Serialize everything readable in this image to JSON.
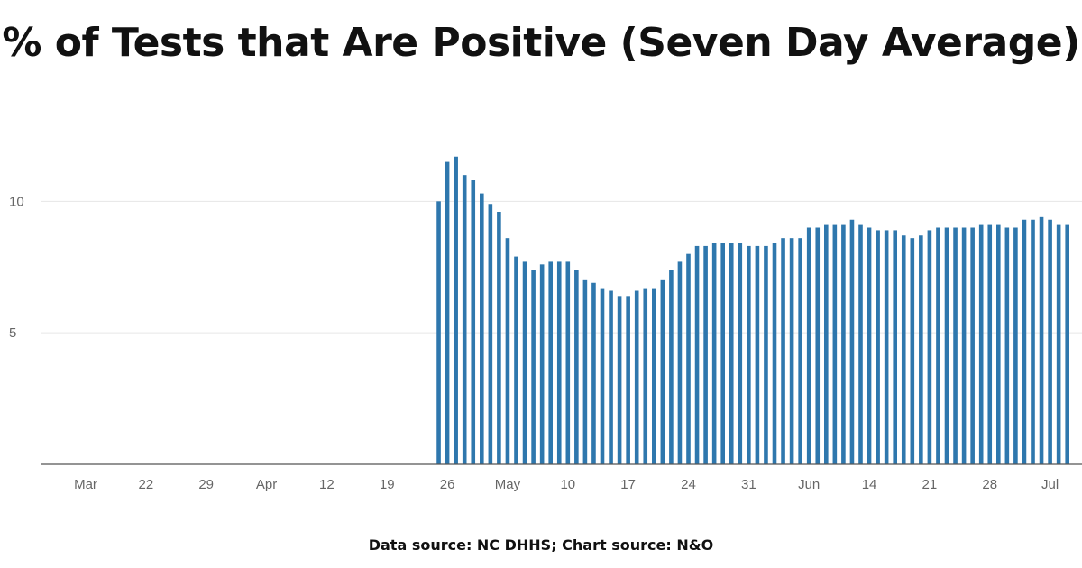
{
  "title": "% of Tests that Are Positive (Seven Day Average)",
  "source": "Data source: NC DHHS; Chart source: N&O",
  "chart_data": {
    "type": "bar",
    "bar_color": "#2e77ad",
    "grid": true,
    "ylim": [
      0,
      12
    ],
    "yticks": [
      5,
      10
    ],
    "x_start": "2020-03-15",
    "x_end": "2020-07-07",
    "xticks": [
      {
        "date": "2020-03-15",
        "label": "Mar"
      },
      {
        "date": "2020-03-22",
        "label": "22"
      },
      {
        "date": "2020-03-29",
        "label": "29"
      },
      {
        "date": "2020-04-05",
        "label": "Apr"
      },
      {
        "date": "2020-04-12",
        "label": "12"
      },
      {
        "date": "2020-04-19",
        "label": "19"
      },
      {
        "date": "2020-04-26",
        "label": "26"
      },
      {
        "date": "2020-05-03",
        "label": "May"
      },
      {
        "date": "2020-05-10",
        "label": "10"
      },
      {
        "date": "2020-05-17",
        "label": "17"
      },
      {
        "date": "2020-05-24",
        "label": "24"
      },
      {
        "date": "2020-05-31",
        "label": "31"
      },
      {
        "date": "2020-06-07",
        "label": "Jun"
      },
      {
        "date": "2020-06-14",
        "label": "14"
      },
      {
        "date": "2020-06-21",
        "label": "21"
      },
      {
        "date": "2020-06-28",
        "label": "28"
      },
      {
        "date": "2020-07-05",
        "label": "Jul"
      }
    ],
    "x": [
      "2020-04-25",
      "2020-04-26",
      "2020-04-27",
      "2020-04-28",
      "2020-04-29",
      "2020-04-30",
      "2020-05-01",
      "2020-05-02",
      "2020-05-03",
      "2020-05-04",
      "2020-05-05",
      "2020-05-06",
      "2020-05-07",
      "2020-05-08",
      "2020-05-09",
      "2020-05-10",
      "2020-05-11",
      "2020-05-12",
      "2020-05-13",
      "2020-05-14",
      "2020-05-15",
      "2020-05-16",
      "2020-05-17",
      "2020-05-18",
      "2020-05-19",
      "2020-05-20",
      "2020-05-21",
      "2020-05-22",
      "2020-05-23",
      "2020-05-24",
      "2020-05-25",
      "2020-05-26",
      "2020-05-27",
      "2020-05-28",
      "2020-05-29",
      "2020-05-30",
      "2020-05-31",
      "2020-06-01",
      "2020-06-02",
      "2020-06-03",
      "2020-06-04",
      "2020-06-05",
      "2020-06-06",
      "2020-06-07",
      "2020-06-08",
      "2020-06-09",
      "2020-06-10",
      "2020-06-11",
      "2020-06-12",
      "2020-06-13",
      "2020-06-14",
      "2020-06-15",
      "2020-06-16",
      "2020-06-17",
      "2020-06-18",
      "2020-06-19",
      "2020-06-20",
      "2020-06-21",
      "2020-06-22",
      "2020-06-23",
      "2020-06-24",
      "2020-06-25",
      "2020-06-26",
      "2020-06-27",
      "2020-06-28",
      "2020-06-29",
      "2020-06-30",
      "2020-07-01",
      "2020-07-02",
      "2020-07-03",
      "2020-07-04",
      "2020-07-05",
      "2020-07-06",
      "2020-07-07"
    ],
    "values": [
      10.0,
      11.5,
      11.7,
      11.0,
      10.8,
      10.3,
      9.9,
      9.6,
      8.6,
      7.9,
      7.7,
      7.4,
      7.6,
      7.7,
      7.7,
      7.7,
      7.4,
      7.0,
      6.9,
      6.7,
      6.6,
      6.4,
      6.4,
      6.6,
      6.7,
      6.7,
      7.0,
      7.4,
      7.7,
      8.0,
      8.3,
      8.3,
      8.4,
      8.4,
      8.4,
      8.4,
      8.3,
      8.3,
      8.3,
      8.4,
      8.6,
      8.6,
      8.6,
      9.0,
      9.0,
      9.1,
      9.1,
      9.1,
      9.3,
      9.1,
      9.0,
      8.9,
      8.9,
      8.9,
      8.7,
      8.6,
      8.7,
      8.9,
      9.0,
      9.0,
      9.0,
      9.0,
      9.0,
      9.1,
      9.1,
      9.1,
      9.0,
      9.0,
      9.3,
      9.3,
      9.4,
      9.3,
      9.1,
      9.1
    ]
  }
}
